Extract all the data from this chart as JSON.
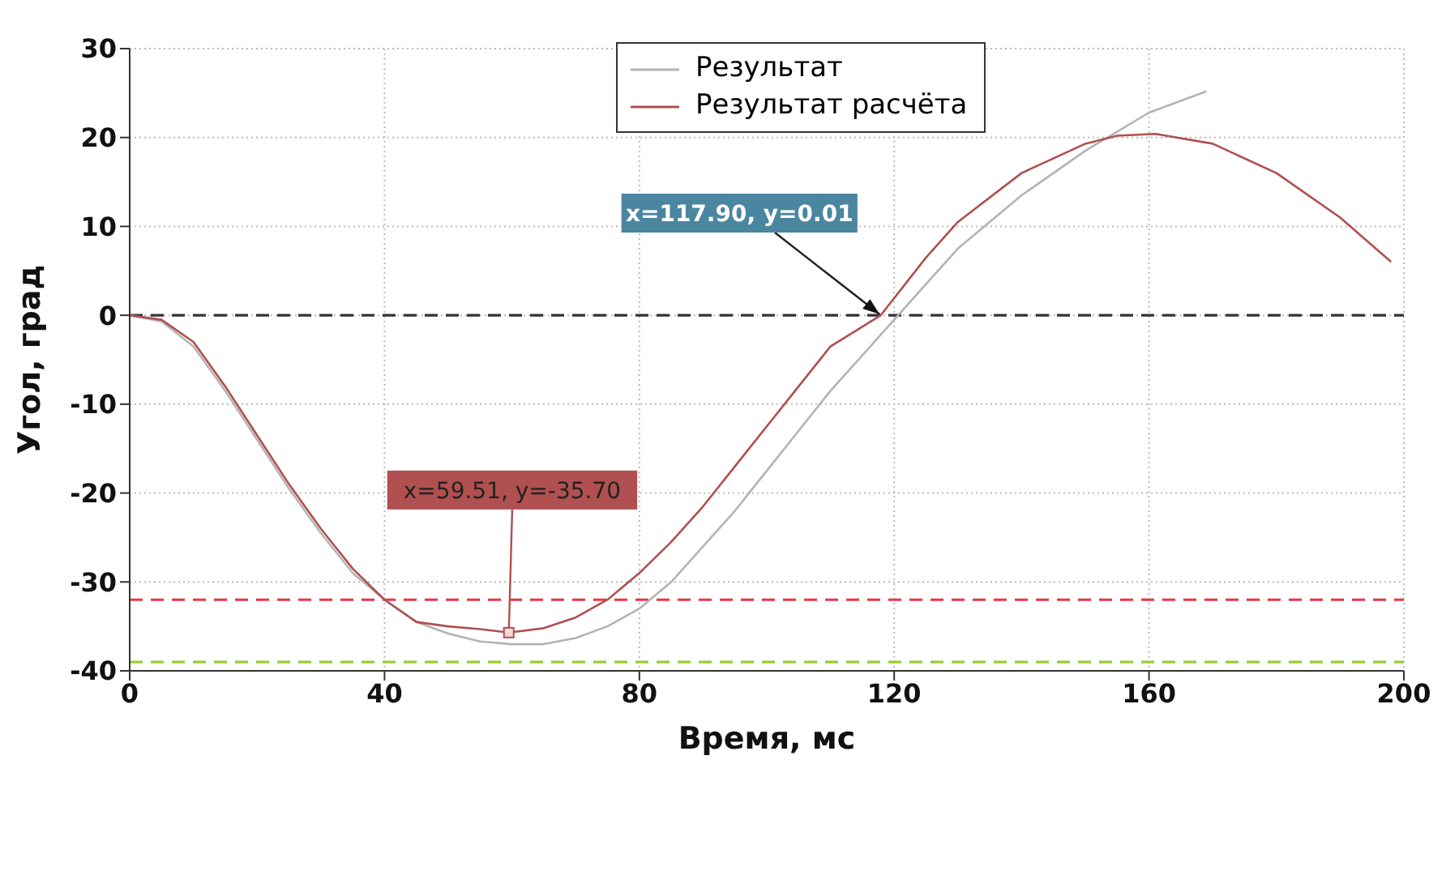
{
  "chart_data": {
    "type": "line",
    "xlabel": "Время, мс",
    "ylabel": "Угол, град",
    "xlim": [
      0,
      200
    ],
    "xticks": [
      0,
      40,
      80,
      120,
      160,
      200
    ],
    "ylim": [
      -40,
      30
    ],
    "yticks": [
      -40,
      -30,
      -20,
      -10,
      0,
      10,
      20,
      30
    ],
    "grid": true,
    "legend": "top right",
    "marker": "none",
    "line_style": "solid",
    "series": [
      {
        "name": "Результат",
        "color": "#b4b4b4",
        "x": [
          0,
          5,
          10,
          15,
          20,
          25,
          30,
          35,
          40,
          45,
          50,
          55,
          60,
          65,
          70,
          75,
          80,
          85,
          90,
          95,
          100,
          105,
          110,
          115,
          120,
          125,
          130,
          140,
          150,
          160,
          169
        ],
        "values": [
          0,
          -0.7,
          -3.5,
          -8.5,
          -14,
          -19.5,
          -24.5,
          -29,
          -32,
          -34.5,
          -35.8,
          -36.7,
          -37,
          -37,
          -36.3,
          -35,
          -33,
          -30,
          -26,
          -22,
          -17.5,
          -13,
          -8.5,
          -4.5,
          -0.5,
          3.5,
          7.5,
          13.5,
          18.5,
          22.8,
          25.2
        ]
      },
      {
        "name": "Результат расчёта",
        "color": "#b05050",
        "x": [
          0,
          5,
          10,
          15,
          20,
          25,
          30,
          35,
          40,
          45,
          50,
          55,
          59.51,
          65,
          70,
          75,
          80,
          85,
          90,
          95,
          100,
          105,
          110,
          117.9,
          125,
          130,
          140,
          150,
          155,
          161,
          170,
          180,
          190,
          198
        ],
        "values": [
          0,
          -0.5,
          -3,
          -8,
          -13.5,
          -19,
          -24,
          -28.5,
          -32,
          -34.5,
          -35,
          -35.3,
          -35.7,
          -35.2,
          -34,
          -32,
          -29,
          -25.5,
          -21.5,
          -17,
          -12.5,
          -8,
          -3.5,
          0.01,
          6.5,
          10.5,
          16,
          19.3,
          20.2,
          20.4,
          19.3,
          16,
          11,
          6
        ]
      }
    ],
    "ref_lines": [
      {
        "axis": "y",
        "value": 0,
        "color": "#333333",
        "line_style": "dashed"
      },
      {
        "axis": "y",
        "value": -32,
        "color": "#ee3344",
        "line_style": "dashed"
      },
      {
        "axis": "y",
        "value": -39,
        "color": "#99cc33",
        "line_style": "dashed"
      }
    ],
    "annotations": [
      {
        "text": "x=117.90, y=0.01",
        "x": 117.9,
        "y": 0.01
      },
      {
        "text": "x=59.51, y=-35.70",
        "x": 59.51,
        "y": -35.7
      }
    ]
  }
}
